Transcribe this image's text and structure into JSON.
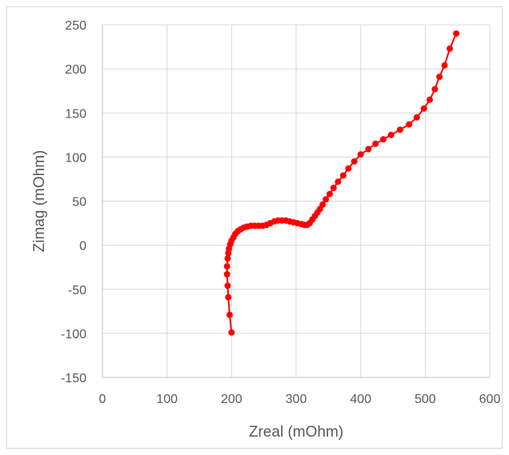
{
  "chart_data": {
    "type": "scatter",
    "title": "",
    "xlabel": "Zreal (mOhm)",
    "ylabel": "Zimag (mOhm)",
    "xlim": [
      0,
      600
    ],
    "ylim": [
      -150,
      250
    ],
    "xticks": [
      0,
      100,
      200,
      300,
      400,
      500,
      600
    ],
    "yticks": [
      -150,
      -100,
      -50,
      0,
      50,
      100,
      150,
      200,
      250
    ],
    "grid": true,
    "legend": "none",
    "series_color": "#ff0000",
    "series": [
      {
        "x": [
          200,
          197,
          195,
          194,
          193,
          193,
          194,
          195,
          196,
          198,
          200,
          203,
          206,
          210,
          214,
          219,
          224,
          230,
          236,
          242,
          248,
          254,
          260,
          266,
          272,
          278,
          284,
          290,
          296,
          302,
          308,
          313,
          317,
          321,
          325,
          329,
          333,
          337,
          341,
          346,
          352,
          358,
          365,
          373,
          381,
          390,
          400,
          412,
          423,
          435,
          447,
          461,
          475,
          487,
          498,
          507,
          515,
          522,
          530,
          538,
          548
        ],
        "y": [
          -99,
          -79,
          -59,
          -46,
          -33,
          -24,
          -15,
          -9,
          -4,
          1,
          5,
          9,
          13,
          16,
          18,
          20,
          21,
          22,
          22,
          22,
          22,
          23,
          25,
          27,
          28,
          28,
          28,
          27,
          26,
          25,
          24,
          23,
          23,
          25,
          29,
          33,
          37,
          41,
          46,
          52,
          58,
          65,
          72,
          79,
          87,
          95,
          103,
          109,
          115,
          120,
          125,
          131,
          137,
          145,
          155,
          165,
          177,
          191,
          204,
          223,
          240
        ]
      }
    ]
  }
}
